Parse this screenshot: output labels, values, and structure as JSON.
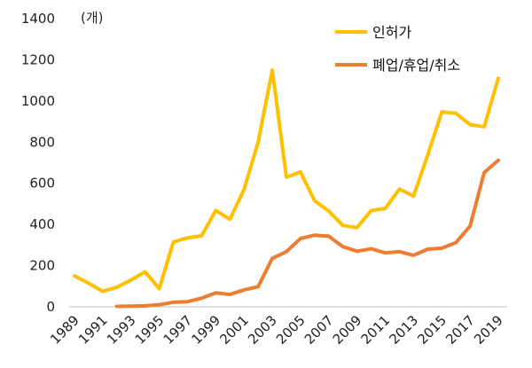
{
  "chart_data": {
    "type": "line",
    "unit_label": "(개)",
    "x": [
      "1989",
      "1990",
      "1991",
      "1992",
      "1993",
      "1994",
      "1995",
      "1996",
      "1997",
      "1998",
      "1999",
      "2000",
      "2001",
      "2002",
      "2003",
      "2004",
      "2005",
      "2006",
      "2007",
      "2008",
      "2009",
      "2010",
      "2011",
      "2012",
      "2013",
      "2014",
      "2015",
      "2016",
      "2017",
      "2018",
      "2019"
    ],
    "x_tick_labels": [
      "1989",
      "1991",
      "1993",
      "1995",
      "1997",
      "1999",
      "2001",
      "2003",
      "2005",
      "2007",
      "2009",
      "2011",
      "2013",
      "2015",
      "2017",
      "2019"
    ],
    "ylim": [
      0,
      1400
    ],
    "y_ticks": [
      0,
      200,
      400,
      600,
      800,
      1000,
      1200,
      1400
    ],
    "grid": false,
    "legend_position": "top-right",
    "series": [
      {
        "name": "인허가",
        "color": "#FFC000",
        "values": [
          150,
          115,
          75,
          95,
          130,
          170,
          88,
          315,
          335,
          345,
          468,
          425,
          570,
          800,
          1150,
          630,
          655,
          515,
          465,
          395,
          385,
          468,
          478,
          572,
          538,
          737,
          947,
          940,
          885,
          875,
          1110
        ]
      },
      {
        "name": "폐업/휴업/취소",
        "color": "#ED7D31",
        "values": [
          null,
          null,
          null,
          2,
          3,
          5,
          10,
          22,
          25,
          42,
          68,
          60,
          82,
          98,
          235,
          268,
          332,
          348,
          343,
          292,
          270,
          282,
          262,
          268,
          250,
          280,
          285,
          312,
          392,
          652,
          712
        ]
      }
    ]
  }
}
